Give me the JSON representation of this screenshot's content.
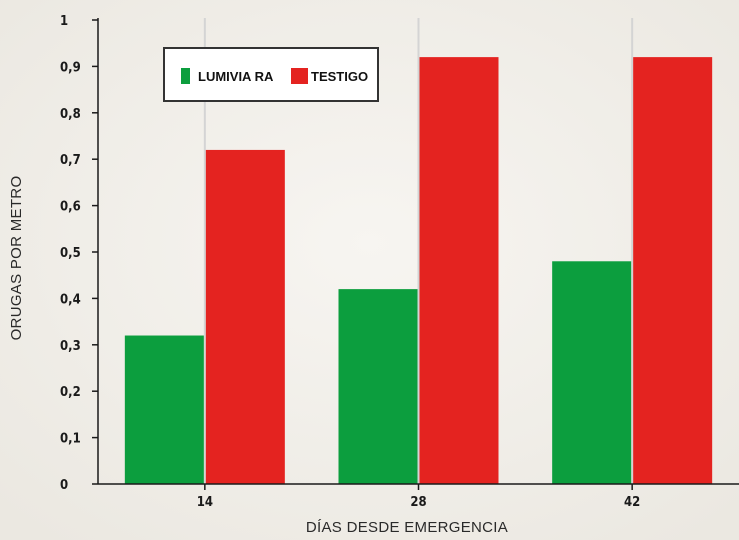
{
  "chart_data": {
    "type": "bar",
    "title": "",
    "xlabel": "DÍAS DESDE EMERGENCIA",
    "ylabel": "ORUGAS POR METRO",
    "categories": [
      "14",
      "28",
      "42"
    ],
    "series": [
      {
        "name": "LUMIVIA RA",
        "color": "#0c9e3e",
        "values": [
          0.32,
          0.42,
          0.48
        ]
      },
      {
        "name": "TESTIGO",
        "color": "#e42320",
        "values": [
          0.72,
          0.92,
          0.92
        ]
      }
    ],
    "ylim": [
      0,
      1
    ],
    "yticks": [
      "0",
      "0,1",
      "0,2",
      "0,3",
      "0,4",
      "0,5",
      "0,6",
      "0,7",
      "0,8",
      "0,9",
      "1"
    ],
    "grid": false,
    "legend_position": "top-left",
    "colors": {
      "background": "#f3f1ec",
      "axis": "#1a1a1a",
      "separator": "#d4d4d4",
      "legend_border": "#333333"
    }
  }
}
